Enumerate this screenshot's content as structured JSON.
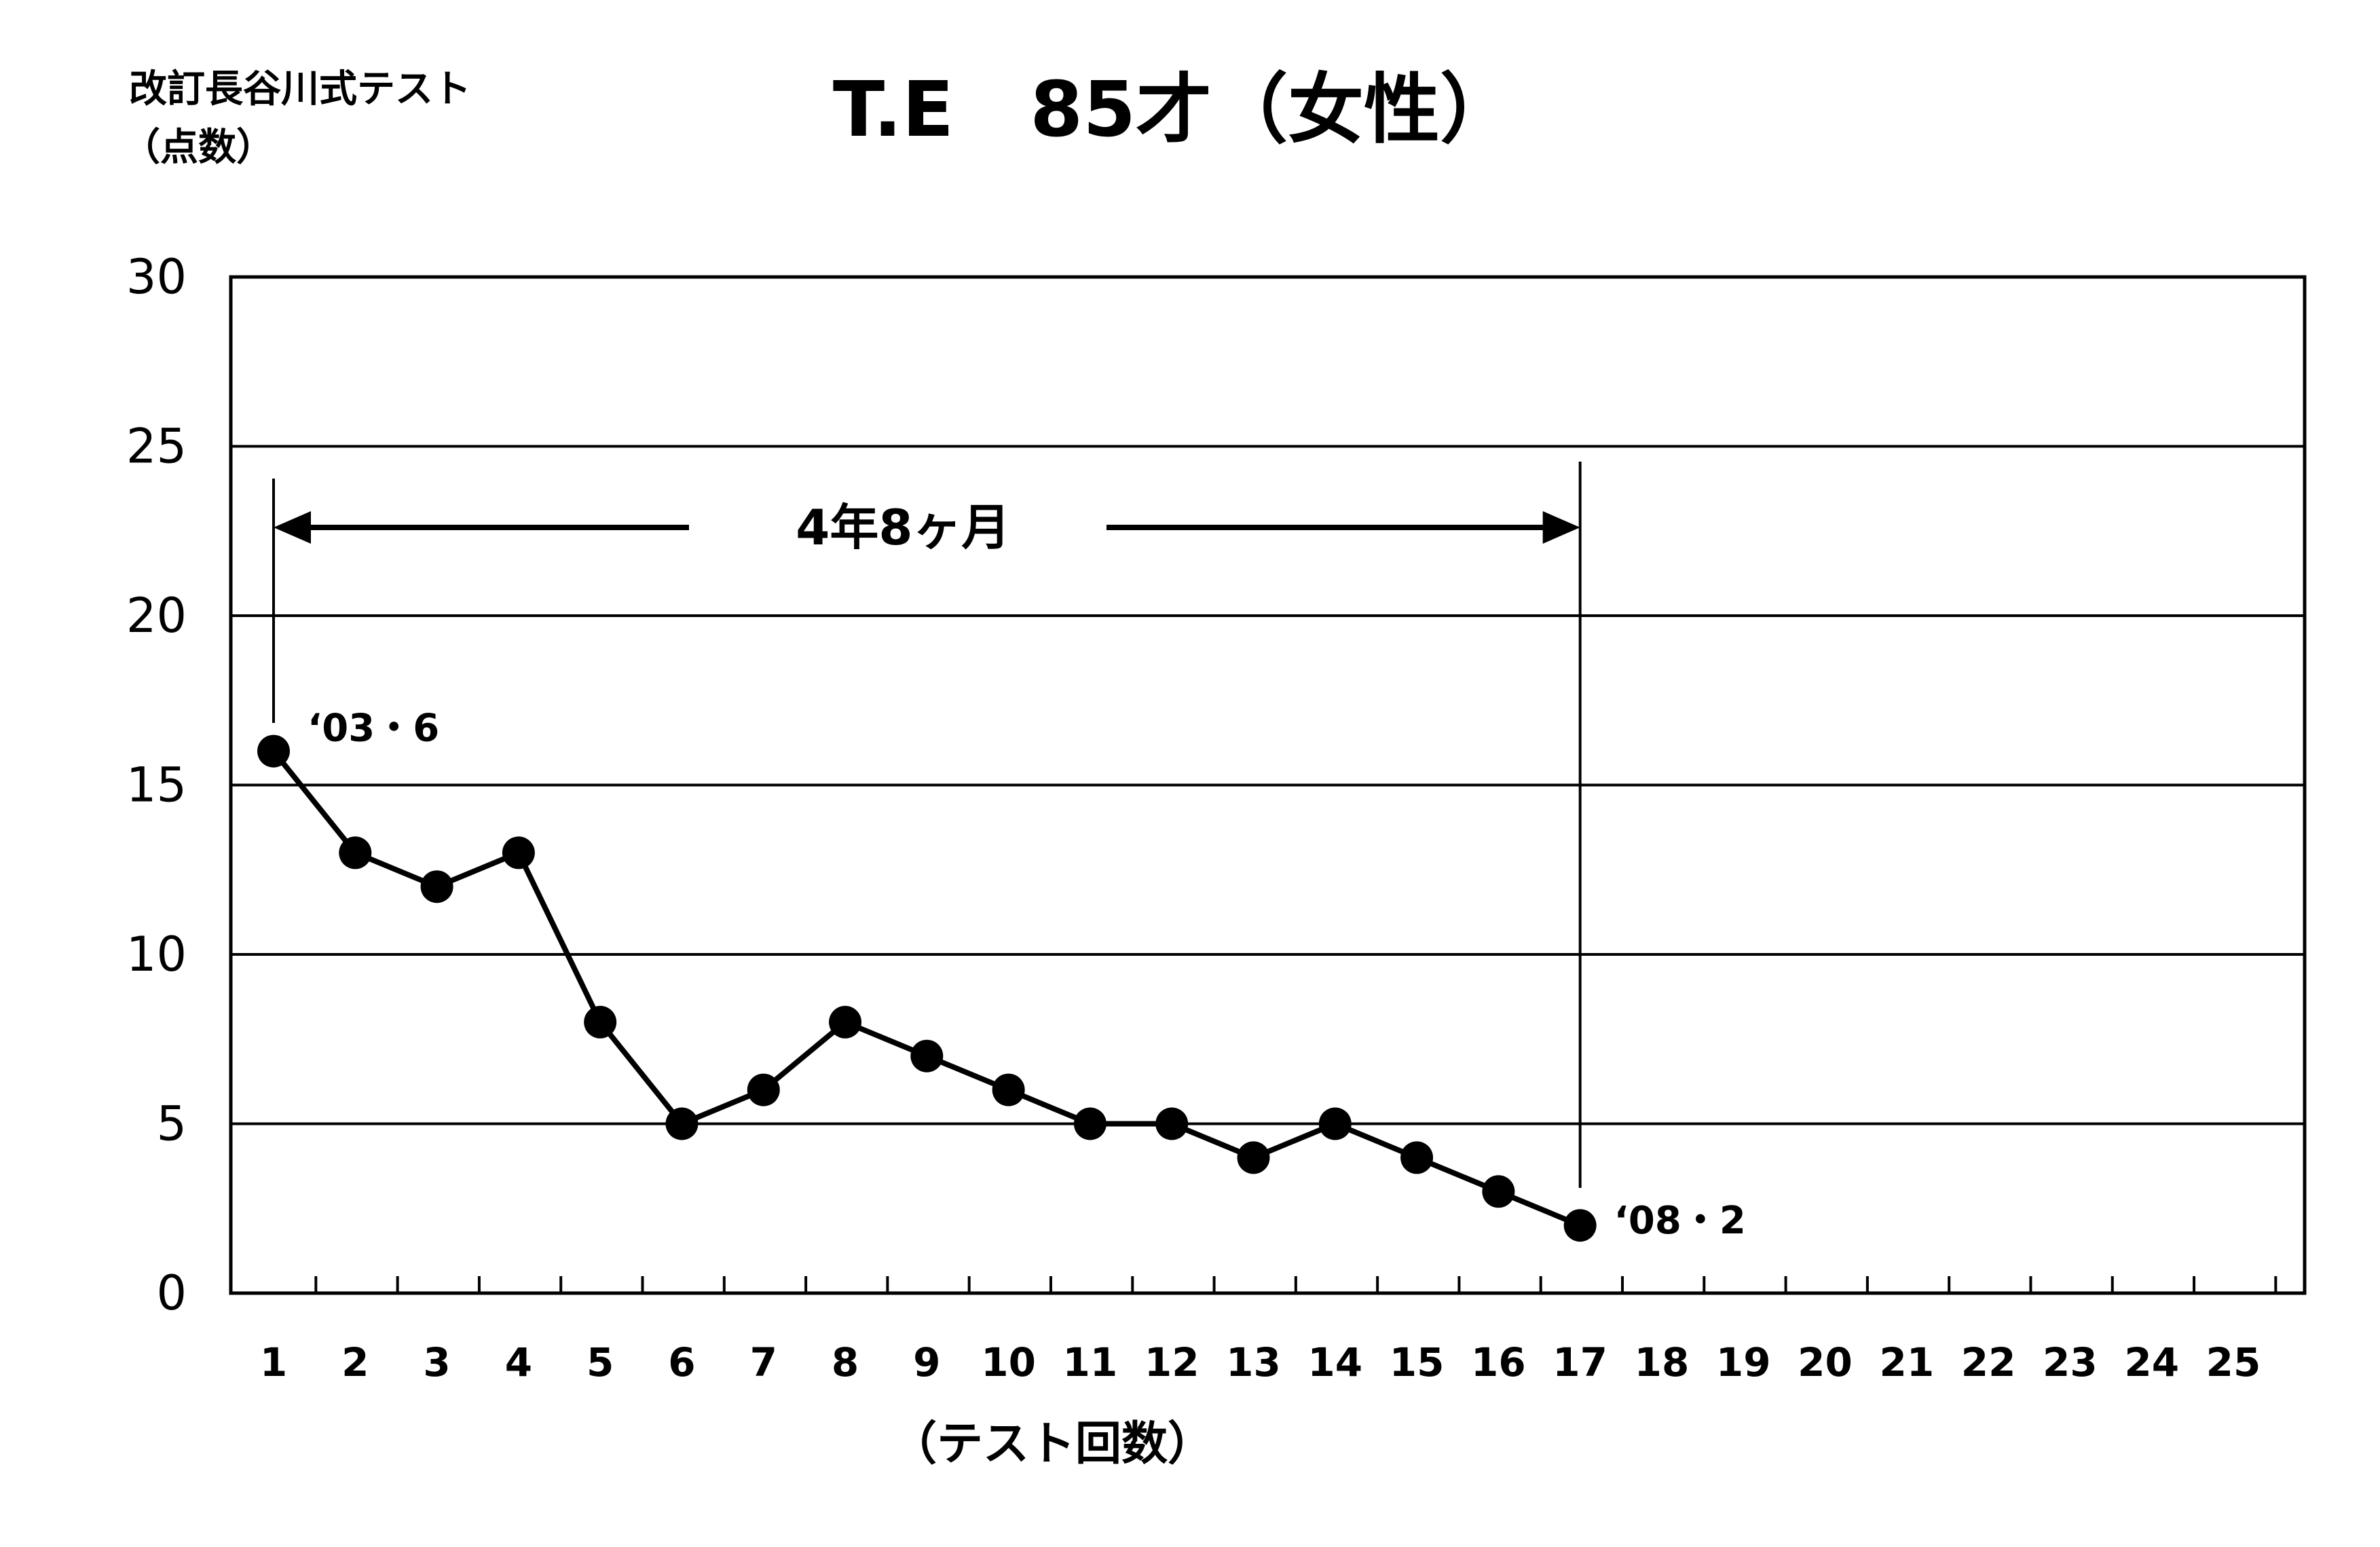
{
  "chart_data": {
    "type": "line",
    "title": "T.E　85才（女性）",
    "ylabel_line1": "改訂長谷川式テスト",
    "ylabel_line2": "（点数）",
    "xlabel": "（テスト回数）",
    "ylim": [
      0,
      30
    ],
    "yticks": [
      0,
      5,
      10,
      15,
      20,
      25,
      30
    ],
    "xlim": [
      1,
      25
    ],
    "x": [
      1,
      2,
      3,
      4,
      5,
      6,
      7,
      8,
      9,
      10,
      11,
      12,
      13,
      14,
      15,
      16,
      17
    ],
    "y": [
      16,
      13,
      12,
      13,
      8,
      5,
      6,
      8,
      7,
      6,
      5,
      5,
      4,
      5,
      4,
      3,
      2
    ],
    "grid": true,
    "annotations": {
      "start_label": "‘03・6",
      "end_label": "‘08・2",
      "span_label": "4年8ヶ月",
      "span_from_x": 1,
      "span_to_x": 17
    }
  }
}
